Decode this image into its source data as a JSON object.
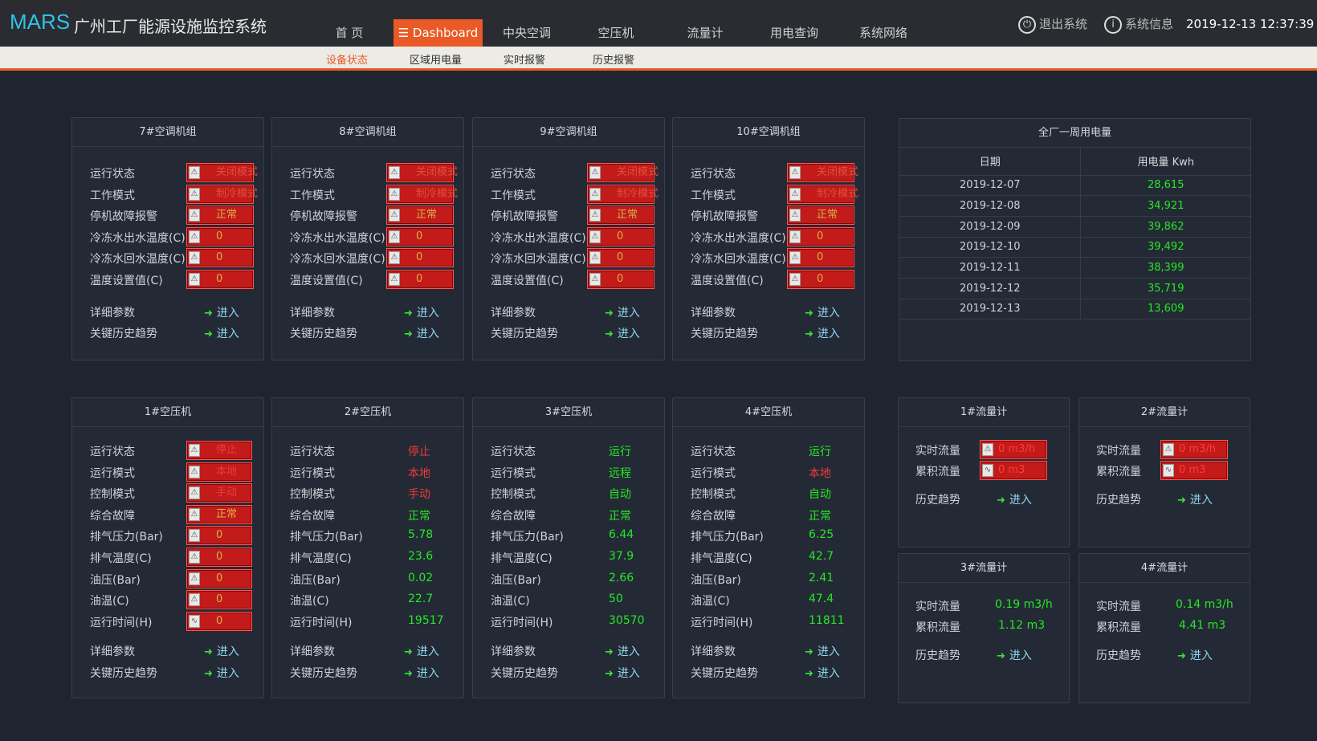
{
  "header": {
    "logo": "MARS",
    "title": "广州工厂能源设施监控系统",
    "nav": [
      "首 页",
      "Dashboard",
      "中央空调",
      "空压机",
      "流量计",
      "用电查询",
      "系统网络"
    ],
    "logout": "退出系统",
    "sysinfo": "系统信息",
    "datetime": "2019-12-13 12:37:39"
  },
  "subnav": [
    "设备状态",
    "区域用电量",
    "实时报警",
    "历史报警"
  ],
  "ac_units": [
    {
      "title": "7#空调机组"
    },
    {
      "title": "8#空调机组"
    },
    {
      "title": "9#空调机组"
    },
    {
      "title": "10#空调机组"
    }
  ],
  "ac_labels": [
    "运行状态",
    "工作模式",
    "停机故障报警",
    "冷冻水出水温度(C)",
    "冷冻水回水温度(C)",
    "温度设置值(C)"
  ],
  "ac_values": [
    "关闭模式",
    "制冷模式",
    "正常",
    "0",
    "0",
    "0"
  ],
  "link_labels": [
    "详细参数",
    "关键历史趋势"
  ],
  "enter": "进入",
  "energy": {
    "title": "全厂一周用电量",
    "headers": [
      "日期",
      "用电量 Kwh"
    ],
    "rows": [
      [
        "2019-12-07",
        "28,615"
      ],
      [
        "2019-12-08",
        "34,921"
      ],
      [
        "2019-12-09",
        "39,862"
      ],
      [
        "2019-12-10",
        "39,492"
      ],
      [
        "2019-12-11",
        "38,399"
      ],
      [
        "2019-12-12",
        "35,719"
      ],
      [
        "2019-12-13",
        "13,609"
      ]
    ]
  },
  "comp_labels": [
    "运行状态",
    "运行模式",
    "控制模式",
    "综合故障",
    "排气压力(Bar)",
    "排气温度(C)",
    "油压(Bar)",
    "油温(C)",
    "运行时间(H)"
  ],
  "compressors": [
    {
      "title": "1#空压机",
      "values": [
        "停止",
        "本地",
        "手动",
        "正常",
        "0",
        "0",
        "0",
        "0",
        "0"
      ]
    },
    {
      "title": "2#空压机",
      "values": [
        "停止",
        "本地",
        "手动",
        "正常",
        "5.78",
        "23.6",
        "0.02",
        "22.7",
        "19517"
      ]
    },
    {
      "title": "3#空压机",
      "values": [
        "运行",
        "远程",
        "自动",
        "正常",
        "6.44",
        "37.9",
        "2.66",
        "50",
        "30570"
      ]
    },
    {
      "title": "4#空压机",
      "values": [
        "运行",
        "本地",
        "自动",
        "正常",
        "6.25",
        "42.7",
        "2.41",
        "47.4",
        "11811"
      ]
    }
  ],
  "flow_labels": [
    "实时流量",
    "累积流量",
    "历史趋势"
  ],
  "flowmeters": [
    {
      "title": "1#流量计",
      "rate": "0  m3/h",
      "total": "0  m3"
    },
    {
      "title": "2#流量计",
      "rate": "0  m3/h",
      "total": "0  m3"
    },
    {
      "title": "3#流量计",
      "rate": "0.19  m3/h",
      "total": "1.12  m3"
    },
    {
      "title": "4#流量计",
      "rate": "0.14  m3/h",
      "total": "4.41  m3"
    }
  ],
  "colors": {
    "accent": "#e95a26",
    "ok": "#27e627",
    "alarm": "#f03a3a",
    "alarm_box": "#c31a1a",
    "logo": "#2fc3e6"
  }
}
